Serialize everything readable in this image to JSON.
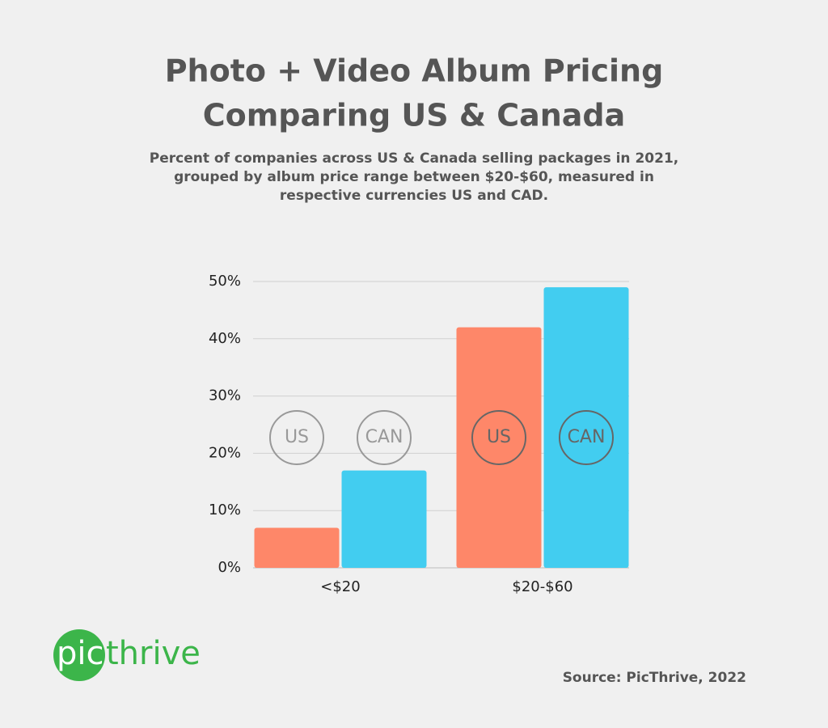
{
  "chart_data": {
    "type": "bar",
    "title": [
      "Photo + Video Album Pricing",
      "Comparing US & Canada"
    ],
    "subtitle": [
      "Percent of companies across US & Canada selling packages in 2021,",
      "grouped by album price range between $20-$60, measured in",
      "respective currencies US and CAD."
    ],
    "categories": [
      "<$20",
      "$20-$60"
    ],
    "series": [
      {
        "name": "US",
        "color": "#fe8769",
        "values": [
          7,
          42
        ]
      },
      {
        "name": "CAN",
        "color": "#42cdf0",
        "values": [
          17,
          49
        ]
      }
    ],
    "ylim": [
      0,
      50
    ],
    "yticks": [
      {
        "value": 0,
        "label": "0%"
      },
      {
        "value": 10,
        "label": "10%"
      },
      {
        "value": 20,
        "label": "20%"
      },
      {
        "value": 30,
        "label": "30%"
      },
      {
        "value": 40,
        "label": "40%"
      },
      {
        "value": 50,
        "label": "50%"
      }
    ],
    "grid": true,
    "logo": [
      "pic",
      "thrive"
    ],
    "source": "Source: PicThrive, 2022"
  }
}
